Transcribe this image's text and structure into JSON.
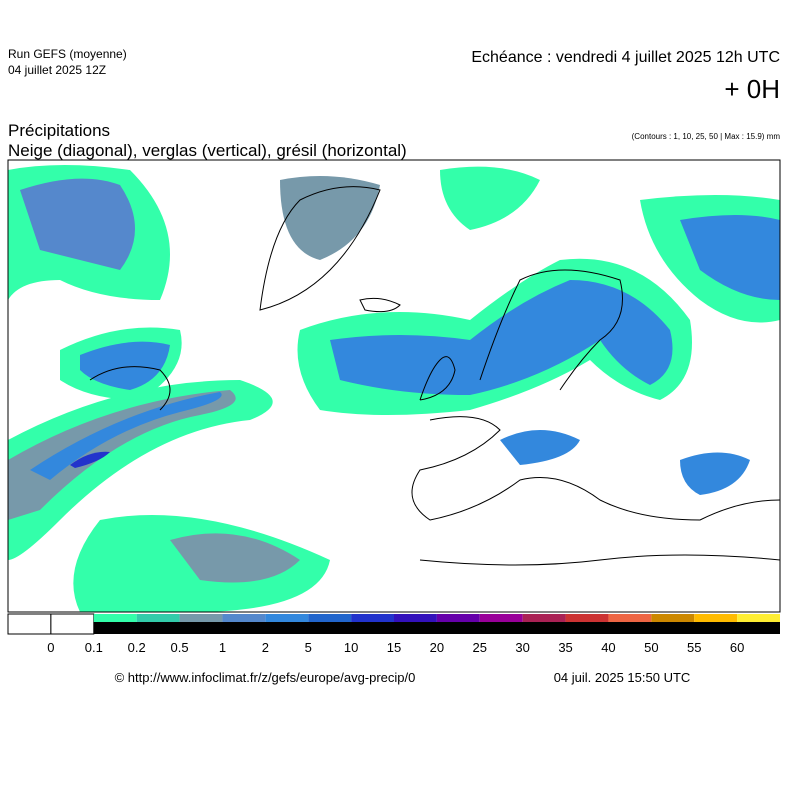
{
  "header": {
    "run": "Run GEFS (moyenne)",
    "date": "04 juillet 2025 12Z",
    "echeance": "Echéance : vendredi 4 juillet 2025 12h UTC",
    "offset": "+ 0H"
  },
  "title": {
    "line1": "Précipitations",
    "line2": "Neige (diagonal), verglas (vertical), grésil (horizontal)",
    "contours": "(Contours : 1, 10, 25, 50 | Max : 15.9) mm"
  },
  "legend": {
    "labels": [
      "0",
      "0.1",
      "0.2",
      "0.5",
      "1",
      "2",
      "5",
      "10",
      "15",
      "20",
      "25",
      "30",
      "35",
      "40",
      "50",
      "55",
      "60"
    ],
    "colors": [
      "#ffffff",
      "#ffffff",
      "#33ffaa",
      "#33ccaa",
      "#7799aa",
      "#5588cc",
      "#3388dd",
      "#2266cc",
      "#2233cc",
      "#3311bb",
      "#6600aa",
      "#990099",
      "#aa2255",
      "#cc3333",
      "#ee6644",
      "#cc8800",
      "#ffbb00",
      "#ffee33"
    ]
  },
  "footer": {
    "url": "© http://www.infoclimat.fr/z/gefs/europe/avg-precip/0",
    "time": "04 juil. 2025 15:50 UTC"
  }
}
